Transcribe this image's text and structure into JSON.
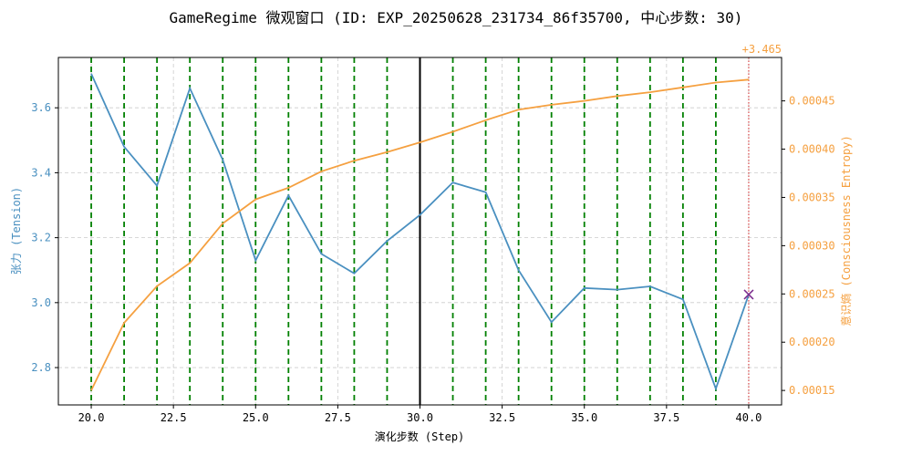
{
  "chart_data": {
    "type": "line",
    "title": "GameRegime 微观窗口 (ID: EXP_20250628_231734_86f35700, 中心步数: 30)",
    "xlabel": "演化步数 (Step)",
    "ylabel_left": "张力 (Tension)",
    "ylabel_right": "意识熵 (Consciousness Entropy)",
    "right_offset_label": "+3.465",
    "xlim": [
      19,
      41
    ],
    "ylim_left": [
      2.685,
      3.755
    ],
    "ylim_right": [
      0.000135,
      0.000495
    ],
    "x_ticks": [
      20.0,
      22.5,
      25.0,
      27.5,
      30.0,
      32.5,
      35.0,
      37.5,
      40.0
    ],
    "x_tick_labels": [
      "20.0",
      "22.5",
      "25.0",
      "27.5",
      "30.0",
      "32.5",
      "35.0",
      "37.5",
      "40.0"
    ],
    "y_left_ticks": [
      2.8,
      3.0,
      3.2,
      3.4,
      3.6
    ],
    "y_left_tick_labels": [
      "2.8",
      "3.0",
      "3.2",
      "3.4",
      "3.6"
    ],
    "y_right_ticks": [
      0.00015,
      0.0002,
      0.00025,
      0.0003,
      0.00035,
      0.0004,
      0.00045
    ],
    "y_right_tick_labels": [
      "0.00015",
      "0.00020",
      "0.00025",
      "0.00030",
      "0.00035",
      "0.00040",
      "0.00045"
    ],
    "grid": true,
    "x": [
      20,
      21,
      22,
      23,
      24,
      25,
      26,
      27,
      28,
      29,
      30,
      31,
      32,
      33,
      34,
      35,
      36,
      37,
      38,
      39,
      40
    ],
    "series": [
      {
        "axis": "left",
        "color": "#4a90c0",
        "values": [
          3.705,
          3.48,
          3.36,
          3.66,
          3.44,
          3.13,
          3.33,
          3.15,
          3.09,
          3.19,
          3.27,
          3.37,
          3.34,
          3.1,
          2.94,
          3.045,
          3.04,
          3.05,
          3.01,
          2.735,
          3.025
        ]
      },
      {
        "axis": "right",
        "color": "#f5a040",
        "values": [
          0.00015,
          0.00022,
          0.000258,
          0.000282,
          0.000323,
          0.000348,
          0.00036,
          0.000377,
          0.000388,
          0.000397,
          0.000407,
          0.000418,
          0.00043,
          0.000441,
          0.000446,
          0.00045,
          0.000455,
          0.000459,
          0.000464,
          0.000469,
          0.000472
        ]
      }
    ],
    "vertical_markers": {
      "green_dashed": [
        20,
        21,
        22,
        23,
        24,
        25,
        26,
        27,
        28,
        29,
        31,
        32,
        33,
        34,
        35,
        36,
        37,
        38,
        39
      ],
      "center_solid_black": 30,
      "end_dotted_red": 40
    },
    "end_marker": {
      "x": 40,
      "y": 3.025,
      "symbol": "x",
      "color": "#7a2a8c"
    },
    "colors": {
      "tension": "#4a90c0",
      "entropy": "#f5a040",
      "marker_green": "#008000",
      "center_line": "#000000",
      "end_line": "#d62728",
      "x_marker": "#7a2a8c"
    }
  }
}
